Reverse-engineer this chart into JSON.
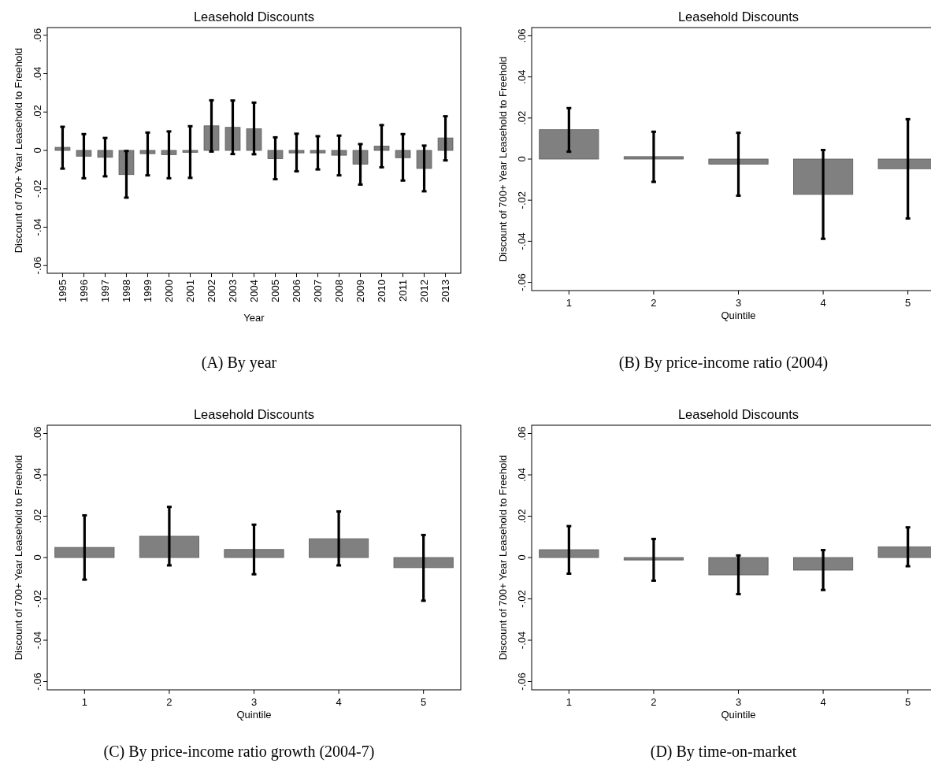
{
  "chart_data": [
    {
      "type": "bar",
      "title": "Leasehold Discounts",
      "xlabel": "Year",
      "ylabel": "Discount of 700+ Year Leasehold to Freehold",
      "annotations": [
        "(A)  By year"
      ],
      "categories": [
        "1995",
        "1996",
        "1997",
        "1998",
        "1999",
        "2000",
        "2001",
        "2002",
        "2003",
        "2004",
        "2005",
        "2006",
        "2007",
        "2008",
        "2009",
        "2010",
        "2011",
        "2012",
        "2013"
      ],
      "values": [
        0.0016,
        -0.003,
        -0.0036,
        -0.0126,
        -0.0017,
        -0.0022,
        -0.001,
        0.0128,
        0.012,
        0.0113,
        -0.0043,
        -0.0013,
        -0.0013,
        -0.0025,
        -0.0072,
        0.0022,
        -0.0038,
        -0.0094,
        0.0065
      ],
      "errors": [
        [
          -0.0095,
          0.0123
        ],
        [
          -0.0145,
          0.0085
        ],
        [
          -0.0135,
          0.0065
        ],
        [
          -0.0246,
          -0.0003
        ],
        [
          -0.013,
          0.0093
        ],
        [
          -0.0145,
          0.0099
        ],
        [
          -0.0143,
          0.0126
        ],
        [
          -0.0006,
          0.0261
        ],
        [
          -0.0019,
          0.026
        ],
        [
          -0.002,
          0.0249
        ],
        [
          -0.015,
          0.0068
        ],
        [
          -0.0109,
          0.0087
        ],
        [
          -0.0099,
          0.0074
        ],
        [
          -0.013,
          0.0077
        ],
        [
          -0.0178,
          0.0033
        ],
        [
          -0.0088,
          0.0132
        ],
        [
          -0.0157,
          0.0085
        ],
        [
          -0.0213,
          0.0025
        ],
        [
          -0.0052,
          0.0178
        ]
      ],
      "color": "#808080",
      "ylim": [
        -0.064,
        0.064
      ],
      "yticks": [
        {
          "value": -0.06,
          "label": "-.06"
        },
        {
          "value": -0.04,
          "label": "-.04"
        },
        {
          "value": -0.02,
          "label": "-.02"
        },
        {
          "value": 0,
          "label": "0"
        },
        {
          "value": 0.02,
          "label": ".02"
        },
        {
          "value": 0.04,
          "label": ".04"
        },
        {
          "value": 0.06,
          "label": ".06"
        }
      ],
      "grid": false
    },
    {
      "type": "bar",
      "title": "Leasehold Discounts",
      "xlabel": "Quintile",
      "ylabel": "Discount of 700+ Year Leasehold to Freehold",
      "annotations": [
        "(B)  By price-income ratio (2004)"
      ],
      "categories": [
        "1",
        "2",
        "3",
        "4",
        "5"
      ],
      "values": [
        0.0143,
        0.0012,
        -0.0025,
        -0.0172,
        -0.0047
      ],
      "errors": [
        [
          0.0036,
          0.0248
        ],
        [
          -0.0111,
          0.0133
        ],
        [
          -0.0178,
          0.0128
        ],
        [
          -0.0388,
          0.0044
        ],
        [
          -0.0289,
          0.0194
        ]
      ],
      "color": "#808080",
      "ylim": [
        -0.064,
        0.064
      ],
      "yticks": [
        {
          "value": -0.06,
          "label": "-.06"
        },
        {
          "value": -0.04,
          "label": "-.04"
        },
        {
          "value": -0.02,
          "label": "-.02"
        },
        {
          "value": 0,
          "label": "0"
        },
        {
          "value": 0.02,
          "label": ".02"
        },
        {
          "value": 0.04,
          "label": ".04"
        },
        {
          "value": 0.06,
          "label": ".06"
        }
      ],
      "grid": false
    },
    {
      "type": "bar",
      "title": "Leasehold Discounts",
      "xlabel": "Quintile",
      "ylabel": "Discount of 700+ Year Leasehold to Freehold",
      "annotations": [
        "(C)  By price-income ratio growth (2004-7)"
      ],
      "categories": [
        "1",
        "2",
        "3",
        "4",
        "5"
      ],
      "values": [
        0.0049,
        0.0103,
        0.0039,
        0.0091,
        -0.0049
      ],
      "errors": [
        [
          -0.0107,
          0.0204
        ],
        [
          -0.0038,
          0.0245
        ],
        [
          -0.0081,
          0.0159
        ],
        [
          -0.0038,
          0.0223
        ],
        [
          -0.0209,
          0.0109
        ]
      ],
      "color": "#808080",
      "ylim": [
        -0.064,
        0.064
      ],
      "yticks": [
        {
          "value": -0.06,
          "label": "-.06"
        },
        {
          "value": -0.04,
          "label": "-.04"
        },
        {
          "value": -0.02,
          "label": "-.02"
        },
        {
          "value": 0,
          "label": "0"
        },
        {
          "value": 0.02,
          "label": ".02"
        },
        {
          "value": 0.04,
          "label": ".04"
        },
        {
          "value": 0.06,
          "label": ".06"
        }
      ],
      "grid": false
    },
    {
      "type": "bar",
      "title": "Leasehold Discounts",
      "xlabel": "Quintile",
      "ylabel": "Discount of 700+ Year Leasehold to Freehold",
      "annotations": [
        "(D)  By time-on-market"
      ],
      "categories": [
        "1",
        "2",
        "3",
        "4",
        "5"
      ],
      "values": [
        0.0038,
        -0.0012,
        -0.0084,
        -0.0061,
        0.0052
      ],
      "errors": [
        [
          -0.0078,
          0.0152
        ],
        [
          -0.0112,
          0.009
        ],
        [
          -0.0177,
          0.001
        ],
        [
          -0.0157,
          0.0036
        ],
        [
          -0.0042,
          0.0146
        ]
      ],
      "color": "#808080",
      "ylim": [
        -0.064,
        0.064
      ],
      "yticks": [
        {
          "value": -0.06,
          "label": "-.06"
        },
        {
          "value": -0.04,
          "label": "-.04"
        },
        {
          "value": -0.02,
          "label": "-.02"
        },
        {
          "value": 0,
          "label": "0"
        },
        {
          "value": 0.02,
          "label": ".02"
        },
        {
          "value": 0.04,
          "label": ".04"
        },
        {
          "value": 0.06,
          "label": ".06"
        }
      ],
      "grid": false
    }
  ]
}
